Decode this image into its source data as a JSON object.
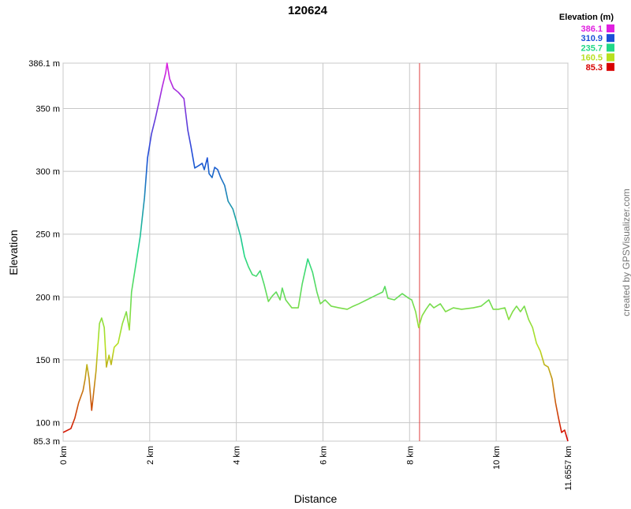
{
  "chart_data": {
    "type": "line",
    "title": "120624",
    "x_label": "Distance",
    "y_label": "Elevation",
    "credit": "created by GPSVisualizer.com",
    "legend": {
      "title": "Elevation (m)",
      "items": [
        {
          "value": 386.1,
          "color": "#e020e0"
        },
        {
          "value": 310.9,
          "color": "#1a4fd8"
        },
        {
          "value": 235.7,
          "color": "#20d888"
        },
        {
          "value": 160.5,
          "color": "#b8e020"
        },
        {
          "value": 85.3,
          "color": "#d80000"
        }
      ]
    },
    "xlim": [
      0,
      11.6557
    ],
    "ylim": [
      85.3,
      386.1
    ],
    "xticks": [
      {
        "value": 0,
        "label": "0 km"
      },
      {
        "value": 2,
        "label": "2 km"
      },
      {
        "value": 4,
        "label": "4 km"
      },
      {
        "value": 6,
        "label": "6 km"
      },
      {
        "value": 8,
        "label": "8 km"
      },
      {
        "value": 10,
        "label": "10 km"
      },
      {
        "value": 11.6557,
        "label": "11.6557 km"
      }
    ],
    "yticks": [
      {
        "value": 85.3,
        "label": "85.3 m"
      },
      {
        "value": 100,
        "label": "100 m"
      },
      {
        "value": 150,
        "label": "150 m"
      },
      {
        "value": 200,
        "label": "200 m"
      },
      {
        "value": 250,
        "label": "250 m"
      },
      {
        "value": 300,
        "label": "300 m"
      },
      {
        "value": 350,
        "label": "350 m"
      },
      {
        "value": 386.1,
        "label": "386.1 m"
      }
    ],
    "grid": true,
    "marker_x": 8.23,
    "marker_color": "#e04040",
    "x": [
      0,
      0.18,
      0.27,
      0.36,
      0.46,
      0.51,
      0.55,
      0.6,
      0.66,
      0.69,
      0.76,
      0.84,
      0.89,
      0.95,
      1.0,
      1.06,
      1.11,
      1.18,
      1.27,
      1.37,
      1.46,
      1.53,
      1.58,
      1.68,
      1.78,
      1.88,
      1.95,
      2.04,
      2.13,
      2.22,
      2.29,
      2.37,
      2.4,
      2.46,
      2.55,
      2.66,
      2.79,
      2.88,
      2.95,
      3.04,
      3.13,
      3.21,
      3.26,
      3.33,
      3.37,
      3.44,
      3.5,
      3.57,
      3.64,
      3.73,
      3.81,
      3.92,
      4.0,
      4.1,
      4.19,
      4.28,
      4.37,
      4.46,
      4.55,
      4.64,
      4.74,
      4.83,
      4.92,
      5.01,
      5.06,
      5.14,
      5.21,
      5.28,
      5.43,
      5.52,
      5.65,
      5.76,
      5.86,
      5.94,
      6.05,
      6.19,
      6.37,
      6.56,
      6.7,
      6.83,
      7.01,
      7.19,
      7.38,
      7.43,
      7.5,
      7.65,
      7.83,
      7.98,
      8.05,
      8.14,
      8.21,
      8.29,
      8.38,
      8.47,
      8.56,
      8.71,
      8.83,
      9.01,
      9.2,
      9.47,
      9.65,
      9.83,
      9.93,
      10.05,
      10.2,
      10.29,
      10.38,
      10.47,
      10.56,
      10.65,
      10.75,
      10.84,
      10.93,
      11.02,
      11.11,
      11.2,
      11.29,
      11.37,
      11.44,
      11.51,
      11.58,
      11.6557
    ],
    "values": [
      92.2,
      95.3,
      103.5,
      116,
      125.5,
      135,
      146.2,
      135,
      109.8,
      119,
      141,
      178.9,
      183.3,
      175.7,
      144.3,
      153.7,
      146.2,
      160,
      163.2,
      178.9,
      188.3,
      173.8,
      204,
      226,
      248,
      279.3,
      310.7,
      329.6,
      342.1,
      356,
      367.3,
      378.6,
      386.1,
      373.5,
      366,
      362.9,
      357.9,
      332.7,
      320.2,
      302.6,
      304.5,
      306.4,
      301.3,
      310.7,
      298.2,
      295,
      303.2,
      301.3,
      295,
      288.8,
      276.2,
      270,
      260.5,
      248,
      232.2,
      224,
      217.8,
      216.5,
      220.9,
      210.2,
      196.4,
      200.8,
      204,
      197.7,
      207.1,
      197.7,
      194.6,
      191.4,
      191.4,
      210.2,
      230.3,
      219.7,
      204,
      194.6,
      197.7,
      192.7,
      191.4,
      190.2,
      192.7,
      194.6,
      197.7,
      200.8,
      204,
      208.4,
      199,
      197.7,
      202.7,
      199,
      197.7,
      188.3,
      175.7,
      185.1,
      190.2,
      194.6,
      191.4,
      194.6,
      188.3,
      191.4,
      190.2,
      191.4,
      192.7,
      197.7,
      190.2,
      190.2,
      191.4,
      182,
      188.3,
      192.7,
      188.3,
      192.7,
      182,
      175.7,
      163.2,
      156.9,
      146.2,
      144.3,
      134.9,
      116,
      103.5,
      92.2,
      94.1,
      85.3
    ]
  }
}
